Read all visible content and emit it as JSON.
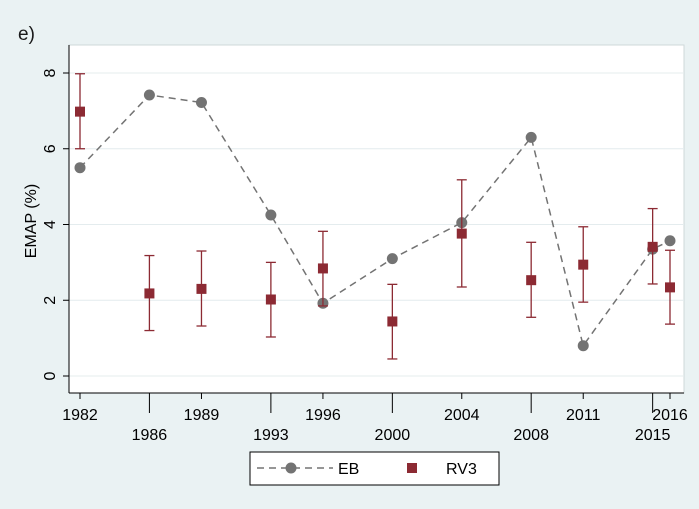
{
  "panel_label": "e)",
  "colors": {
    "background": "#eaf2f3",
    "plot_bg": "#ffffff",
    "grid": "#e4ecee",
    "eb": "#737373",
    "rv3": "#8c2a33"
  },
  "chart_data": {
    "type": "line",
    "ylabel": "EMAP (%)",
    "xlabel": "",
    "ylim": [
      0,
      8
    ],
    "yticks": [
      0,
      2,
      4,
      6,
      8
    ],
    "xlim": [
      1981.5,
      2016.8
    ],
    "xticks": [
      {
        "value": 1982,
        "label": "1982",
        "row": 0
      },
      {
        "value": 1986,
        "label": "1986",
        "row": 1
      },
      {
        "value": 1989,
        "label": "1989",
        "row": 0
      },
      {
        "value": 1993,
        "label": "1993",
        "row": 1
      },
      {
        "value": 1996,
        "label": "1996",
        "row": 0
      },
      {
        "value": 2000,
        "label": "2000",
        "row": 1
      },
      {
        "value": 2004,
        "label": "2004",
        "row": 0
      },
      {
        "value": 2008,
        "label": "2008",
        "row": 1
      },
      {
        "value": 2011,
        "label": "2011",
        "row": 0
      },
      {
        "value": 2015,
        "label": "2015",
        "row": 1
      },
      {
        "value": 2016,
        "label": "2016",
        "row": 0
      }
    ],
    "grid": true,
    "legend_position": "bottom",
    "series": [
      {
        "name": "EB",
        "style": "dashed-line-circle",
        "x": [
          1982,
          1986,
          1989,
          1993,
          1996,
          2000,
          2004,
          2008,
          2011,
          2015,
          2016
        ],
        "y": [
          5.5,
          7.42,
          7.22,
          4.25,
          1.92,
          3.1,
          4.05,
          6.3,
          0.8,
          3.35,
          3.57
        ]
      },
      {
        "name": "RV3",
        "style": "square-errorbar",
        "x": [
          1982,
          1986,
          1989,
          1993,
          1996,
          2000,
          2004,
          2008,
          2011,
          2015,
          2016
        ],
        "y": [
          6.98,
          2.18,
          2.3,
          2.02,
          2.84,
          1.44,
          3.76,
          2.53,
          2.94,
          3.41,
          2.34
        ],
        "lower": [
          6.0,
          1.2,
          1.32,
          1.03,
          1.85,
          0.45,
          2.35,
          1.55,
          1.95,
          2.43,
          1.37
        ],
        "upper": [
          7.98,
          3.18,
          3.3,
          3.0,
          3.82,
          2.42,
          5.18,
          3.53,
          3.94,
          4.42,
          3.32
        ]
      }
    ]
  }
}
